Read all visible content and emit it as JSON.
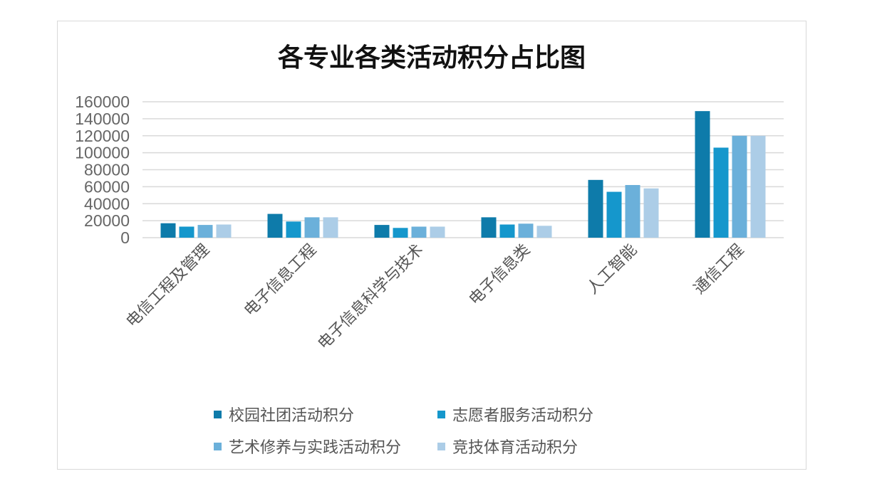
{
  "chart_data": {
    "type": "bar",
    "title": "各专业各类活动积分占比图",
    "categories": [
      "电信工程及管理",
      "电子信息工程",
      "电子信息科学与技术",
      "电子信息类",
      "人工智能",
      "通信工程"
    ],
    "series": [
      {
        "name": "校园社团活动积分",
        "color": "#0E7BAA",
        "values": [
          17000,
          28000,
          15000,
          24000,
          68000,
          149000
        ]
      },
      {
        "name": "志愿者服务活动积分",
        "color": "#1597CC",
        "values": [
          13000,
          19000,
          11500,
          15500,
          54000,
          106000
        ]
      },
      {
        "name": "艺术修养与实践活动积分",
        "color": "#6BB0DA",
        "values": [
          15000,
          24000,
          13000,
          16500,
          62000,
          120000
        ]
      },
      {
        "name": "竞技体育活动积分",
        "color": "#ACCDE7",
        "values": [
          15500,
          24000,
          13000,
          14000,
          58000,
          120000
        ]
      }
    ],
    "yticks": [
      "0",
      "20000",
      "40000",
      "60000",
      "80000",
      "100000",
      "120000",
      "140000",
      "160000"
    ],
    "ylim": [
      0,
      160000
    ],
    "grid": true,
    "legend_position": "bottom"
  }
}
